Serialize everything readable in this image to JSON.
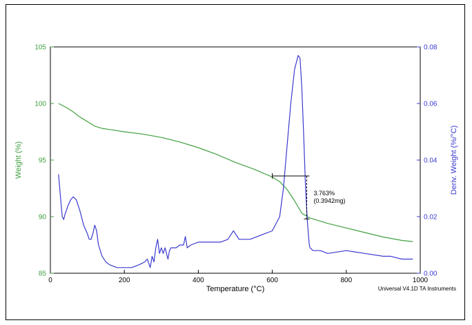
{
  "chart_data": {
    "type": "line",
    "title": "",
    "xlabel": "Temperature (°C)",
    "ylabel_left": "Weight (%)",
    "ylabel_right": "Deriv. Weight (%/°C)",
    "xlim": [
      0,
      1000
    ],
    "ylim_left": [
      85,
      105
    ],
    "ylim_right": [
      0,
      0.08
    ],
    "x_ticks": [
      0,
      200,
      400,
      600,
      800,
      1000
    ],
    "y_left_ticks": [
      85,
      90,
      95,
      100,
      105
    ],
    "y_right_ticks": [
      "0.00",
      "0.02",
      "0.04",
      "0.06",
      "0.08"
    ],
    "grid": false,
    "colors": {
      "weight": "#3fa03f",
      "deriv": "#3a3ad0",
      "marker": "#000000"
    },
    "series": [
      {
        "axis": "left",
        "x": [
          22,
          40,
          60,
          80,
          100,
          120,
          140,
          160,
          200,
          250,
          300,
          350,
          400,
          450,
          500,
          550,
          600,
          620,
          640,
          660,
          680,
          700,
          750,
          800,
          850,
          900,
          950,
          980
        ],
        "values": [
          100.0,
          99.7,
          99.3,
          98.8,
          98.4,
          98.0,
          97.8,
          97.7,
          97.5,
          97.3,
          97.0,
          96.6,
          96.1,
          95.5,
          94.8,
          94.2,
          93.5,
          93.1,
          92.4,
          91.4,
          90.3,
          89.9,
          89.4,
          89.0,
          88.6,
          88.2,
          87.9,
          87.8
        ]
      },
      {
        "axis": "right",
        "x": [
          22,
          28,
          32,
          36,
          40,
          48,
          55,
          62,
          70,
          80,
          90,
          100,
          105,
          110,
          115,
          120,
          125,
          130,
          140,
          150,
          160,
          180,
          200,
          220,
          240,
          255,
          262,
          270,
          275,
          280,
          285,
          290,
          295,
          300,
          305,
          310,
          318,
          322,
          326,
          330,
          340,
          350,
          360,
          365,
          370,
          380,
          400,
          420,
          440,
          460,
          480,
          490,
          495,
          500,
          510,
          520,
          540,
          560,
          580,
          600,
          620,
          630,
          640,
          650,
          660,
          670,
          675,
          680,
          685,
          690,
          695,
          700,
          702,
          710,
          730,
          750,
          800,
          850,
          900,
          920,
          950,
          980
        ],
        "values": [
          0.035,
          0.026,
          0.02,
          0.019,
          0.021,
          0.024,
          0.026,
          0.027,
          0.026,
          0.022,
          0.017,
          0.014,
          0.012,
          0.012,
          0.014,
          0.017,
          0.015,
          0.01,
          0.006,
          0.004,
          0.003,
          0.002,
          0.002,
          0.002,
          0.003,
          0.004,
          0.005,
          0.002,
          0.006,
          0.004,
          0.009,
          0.012,
          0.007,
          0.009,
          0.007,
          0.009,
          0.005,
          0.008,
          0.009,
          0.009,
          0.009,
          0.01,
          0.01,
          0.013,
          0.009,
          0.01,
          0.011,
          0.011,
          0.011,
          0.011,
          0.012,
          0.014,
          0.015,
          0.014,
          0.012,
          0.012,
          0.012,
          0.013,
          0.014,
          0.015,
          0.02,
          0.03,
          0.045,
          0.06,
          0.072,
          0.077,
          0.076,
          0.065,
          0.048,
          0.03,
          0.018,
          0.01,
          0.009,
          0.008,
          0.008,
          0.007,
          0.008,
          0.007,
          0.006,
          0.006,
          0.005,
          0.005
        ]
      }
    ],
    "annotation": {
      "line1": "3.763%",
      "line2": "(0.3942mg)",
      "x_start": 600,
      "x_end": 693,
      "weight_start": 93.6,
      "weight_end": 89.8
    },
    "credit": "Universal V4.1D TA Instruments"
  }
}
